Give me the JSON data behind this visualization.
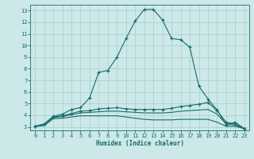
{
  "xlabel": "Humidex (Indice chaleur)",
  "background_color": "#cce8e8",
  "grid_color": "#aacccc",
  "line_color": "#1a6b6b",
  "xlim": [
    -0.5,
    23.5
  ],
  "ylim": [
    2.7,
    13.5
  ],
  "xticks": [
    0,
    1,
    2,
    3,
    4,
    5,
    6,
    7,
    8,
    9,
    10,
    11,
    12,
    13,
    14,
    15,
    16,
    17,
    18,
    19,
    20,
    21,
    22,
    23
  ],
  "yticks": [
    3,
    4,
    5,
    6,
    7,
    8,
    9,
    10,
    11,
    12,
    13
  ],
  "lines": [
    {
      "x": [
        0,
        1,
        2,
        3,
        4,
        5,
        6,
        7,
        8,
        9,
        10,
        11,
        12,
        13,
        14,
        15,
        16,
        17,
        18,
        19,
        20,
        21,
        22,
        23
      ],
      "y": [
        3.05,
        3.25,
        3.9,
        4.1,
        4.5,
        4.65,
        5.5,
        7.7,
        7.85,
        9.0,
        10.6,
        12.1,
        13.1,
        13.1,
        12.2,
        10.6,
        10.5,
        9.85,
        6.5,
        5.4,
        4.45,
        3.2,
        3.4,
        2.85
      ],
      "marker": "+"
    },
    {
      "x": [
        0,
        1,
        2,
        3,
        4,
        5,
        6,
        7,
        8,
        9,
        10,
        11,
        12,
        13,
        14,
        15,
        16,
        17,
        18,
        19,
        20,
        21,
        22,
        23
      ],
      "y": [
        3.05,
        3.25,
        3.85,
        3.95,
        4.15,
        4.35,
        4.4,
        4.55,
        4.6,
        4.65,
        4.55,
        4.5,
        4.5,
        4.5,
        4.5,
        4.6,
        4.75,
        4.85,
        4.95,
        5.1,
        4.4,
        3.4,
        3.25,
        2.85
      ],
      "marker": "+"
    },
    {
      "x": [
        0,
        1,
        2,
        3,
        4,
        5,
        6,
        7,
        8,
        9,
        10,
        11,
        12,
        13,
        14,
        15,
        16,
        17,
        18,
        19,
        20,
        21,
        22,
        23
      ],
      "y": [
        3.05,
        3.2,
        3.8,
        3.9,
        4.05,
        4.2,
        4.25,
        4.3,
        4.35,
        4.35,
        4.3,
        4.25,
        4.2,
        4.2,
        4.2,
        4.25,
        4.35,
        4.4,
        4.45,
        4.5,
        4.1,
        3.25,
        3.15,
        2.85
      ],
      "marker": null
    },
    {
      "x": [
        0,
        1,
        2,
        3,
        4,
        5,
        6,
        7,
        8,
        9,
        10,
        11,
        12,
        13,
        14,
        15,
        16,
        17,
        18,
        19,
        20,
        21,
        22,
        23
      ],
      "y": [
        3.05,
        3.1,
        3.7,
        3.75,
        3.85,
        3.95,
        3.95,
        3.95,
        3.95,
        3.95,
        3.85,
        3.75,
        3.65,
        3.6,
        3.6,
        3.6,
        3.65,
        3.65,
        3.65,
        3.65,
        3.4,
        3.05,
        3.05,
        2.85
      ],
      "marker": null
    }
  ]
}
